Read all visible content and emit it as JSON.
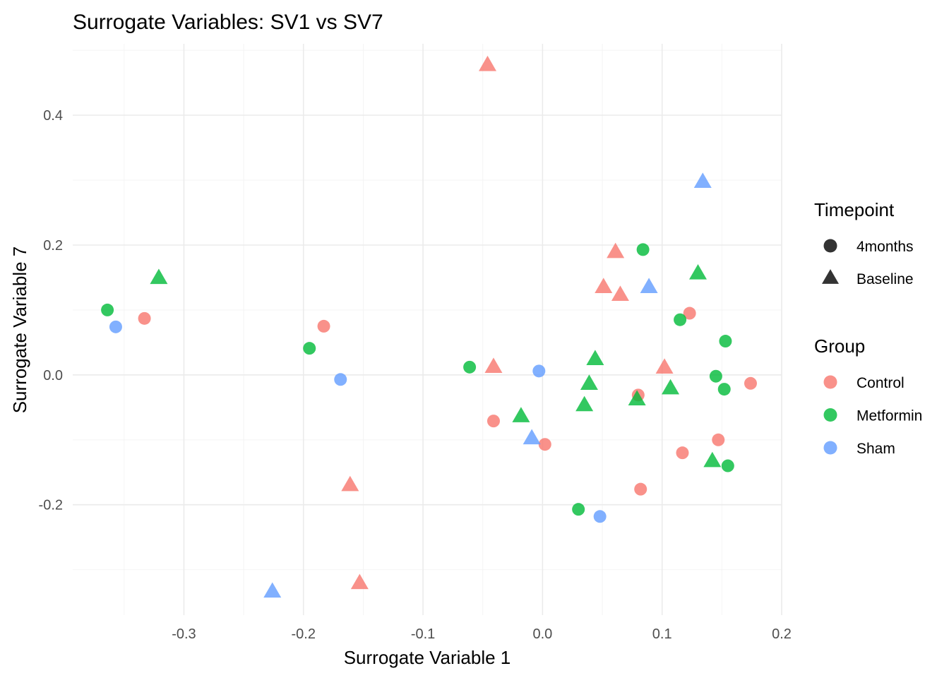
{
  "chart_data": {
    "type": "scatter",
    "title": "Surrogate Variables: SV1 vs SV7",
    "xlabel": "Surrogate Variable 1",
    "ylabel": "Surrogate Variable 7",
    "xlim": [
      -0.393,
      0.2
    ],
    "ylim": [
      -0.37,
      0.51
    ],
    "x_ticks": [
      -0.3,
      -0.2,
      -0.1,
      0.0,
      0.1,
      0.2
    ],
    "x_tick_labels": [
      "-0.3",
      "-0.2",
      "-0.1",
      "0.0",
      "0.1",
      "0.2"
    ],
    "y_ticks": [
      -0.2,
      0.0,
      0.2,
      0.4
    ],
    "y_tick_labels": [
      "-0.2",
      "0.0",
      "0.2",
      "0.4"
    ],
    "grid": true,
    "legend_placement": "right",
    "legends": [
      {
        "title": "Timepoint",
        "entries": [
          {
            "label": "4months",
            "shape": "circle"
          },
          {
            "label": "Baseline",
            "shape": "triangle"
          }
        ]
      },
      {
        "title": "Group",
        "entries": [
          {
            "label": "Control",
            "color": "#F8766D"
          },
          {
            "label": "Metformin",
            "color": "#00BA38"
          },
          {
            "label": "Sham",
            "color": "#619CFF"
          }
        ]
      }
    ],
    "series": [
      {
        "name": "Control",
        "color": "#F8766D",
        "points": [
          {
            "x": -0.333,
            "y": 0.087,
            "timepoint": "4months"
          },
          {
            "x": -0.183,
            "y": 0.075,
            "timepoint": "4months"
          },
          {
            "x": -0.041,
            "y": -0.071,
            "timepoint": "4months"
          },
          {
            "x": 0.002,
            "y": -0.107,
            "timepoint": "4months"
          },
          {
            "x": 0.08,
            "y": -0.031,
            "timepoint": "4months"
          },
          {
            "x": 0.082,
            "y": -0.176,
            "timepoint": "4months"
          },
          {
            "x": 0.117,
            "y": -0.12,
            "timepoint": "4months"
          },
          {
            "x": 0.123,
            "y": 0.095,
            "timepoint": "4months"
          },
          {
            "x": 0.147,
            "y": -0.1,
            "timepoint": "4months"
          },
          {
            "x": 0.174,
            "y": -0.013,
            "timepoint": "4months"
          },
          {
            "x": -0.046,
            "y": 0.477,
            "timepoint": "Baseline"
          },
          {
            "x": -0.041,
            "y": 0.012,
            "timepoint": "Baseline"
          },
          {
            "x": -0.161,
            "y": -0.17,
            "timepoint": "Baseline"
          },
          {
            "x": -0.153,
            "y": -0.321,
            "timepoint": "Baseline"
          },
          {
            "x": 0.051,
            "y": 0.135,
            "timepoint": "Baseline"
          },
          {
            "x": 0.061,
            "y": 0.189,
            "timepoint": "Baseline"
          },
          {
            "x": 0.065,
            "y": 0.123,
            "timepoint": "Baseline"
          },
          {
            "x": 0.102,
            "y": 0.011,
            "timepoint": "Baseline"
          }
        ]
      },
      {
        "name": "Metformin",
        "color": "#00BA38",
        "points": [
          {
            "x": -0.364,
            "y": 0.1,
            "timepoint": "4months"
          },
          {
            "x": -0.195,
            "y": 0.041,
            "timepoint": "4months"
          },
          {
            "x": -0.061,
            "y": 0.012,
            "timepoint": "4months"
          },
          {
            "x": 0.03,
            "y": -0.207,
            "timepoint": "4months"
          },
          {
            "x": 0.084,
            "y": 0.193,
            "timepoint": "4months"
          },
          {
            "x": 0.115,
            "y": 0.085,
            "timepoint": "4months"
          },
          {
            "x": 0.145,
            "y": -0.002,
            "timepoint": "4months"
          },
          {
            "x": 0.153,
            "y": 0.052,
            "timepoint": "4months"
          },
          {
            "x": 0.152,
            "y": -0.022,
            "timepoint": "4months"
          },
          {
            "x": 0.155,
            "y": -0.14,
            "timepoint": "4months"
          },
          {
            "x": -0.321,
            "y": 0.149,
            "timepoint": "Baseline"
          },
          {
            "x": -0.018,
            "y": -0.064,
            "timepoint": "Baseline"
          },
          {
            "x": 0.035,
            "y": -0.047,
            "timepoint": "Baseline"
          },
          {
            "x": 0.039,
            "y": -0.014,
            "timepoint": "Baseline"
          },
          {
            "x": 0.044,
            "y": 0.024,
            "timepoint": "Baseline"
          },
          {
            "x": 0.079,
            "y": -0.038,
            "timepoint": "Baseline"
          },
          {
            "x": 0.107,
            "y": -0.021,
            "timepoint": "Baseline"
          },
          {
            "x": 0.13,
            "y": 0.156,
            "timepoint": "Baseline"
          },
          {
            "x": 0.142,
            "y": -0.133,
            "timepoint": "Baseline"
          }
        ]
      },
      {
        "name": "Sham",
        "color": "#619CFF",
        "points": [
          {
            "x": -0.357,
            "y": 0.074,
            "timepoint": "4months"
          },
          {
            "x": -0.169,
            "y": -0.007,
            "timepoint": "4months"
          },
          {
            "x": -0.003,
            "y": 0.006,
            "timepoint": "4months"
          },
          {
            "x": 0.048,
            "y": -0.218,
            "timepoint": "4months"
          },
          {
            "x": -0.226,
            "y": -0.334,
            "timepoint": "Baseline"
          },
          {
            "x": -0.009,
            "y": -0.098,
            "timepoint": "Baseline"
          },
          {
            "x": 0.089,
            "y": 0.135,
            "timepoint": "Baseline"
          },
          {
            "x": 0.134,
            "y": 0.297,
            "timepoint": "Baseline"
          }
        ]
      }
    ]
  }
}
